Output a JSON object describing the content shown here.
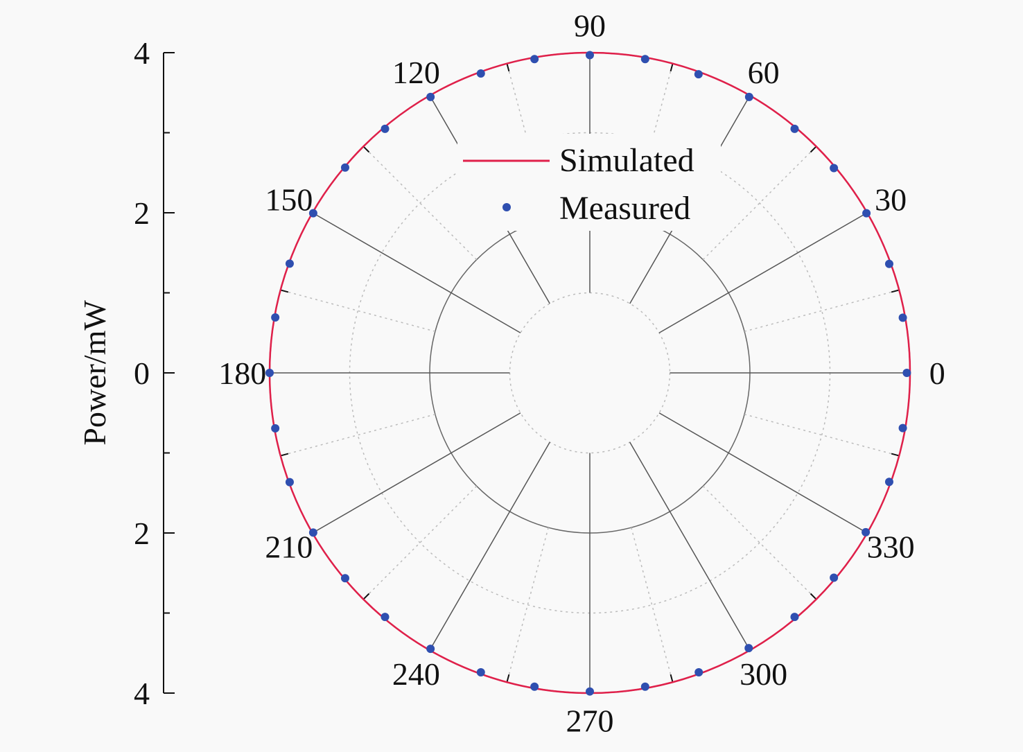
{
  "chart_data": {
    "type": "polar",
    "ylabel": "Power/mW",
    "radial_range": [
      0,
      4
    ],
    "radial_ticks": [
      "4",
      "2",
      "0",
      "2",
      "4"
    ],
    "angle_ticks": [
      0,
      30,
      60,
      90,
      120,
      150,
      180,
      210,
      240,
      270,
      300,
      330
    ],
    "angle_tick_labels": [
      "0",
      "30",
      "60",
      "90",
      "120",
      "150",
      "180",
      "210",
      "240",
      "270",
      "300",
      "330"
    ],
    "legend_position": "center-top",
    "grid": true,
    "series": [
      {
        "name": "Simulated",
        "style": "line",
        "color": "#e0204a",
        "angles": [
          0,
          360
        ],
        "values": [
          4,
          4
        ]
      },
      {
        "name": "Measured",
        "style": "scatter",
        "color": "#2f4fb0",
        "angles": [
          0,
          10,
          20,
          30,
          40,
          50,
          60,
          70,
          80,
          90,
          100,
          110,
          120,
          130,
          140,
          150,
          160,
          170,
          180,
          190,
          200,
          210,
          220,
          230,
          240,
          250,
          260,
          270,
          280,
          290,
          300,
          310,
          320,
          330,
          340,
          350
        ],
        "values": [
          3.96,
          3.97,
          3.98,
          3.99,
          3.98,
          3.98,
          3.98,
          3.97,
          3.98,
          3.97,
          3.98,
          3.98,
          3.98,
          3.98,
          3.99,
          3.99,
          3.99,
          3.99,
          4.0,
          3.99,
          3.99,
          3.99,
          3.99,
          3.98,
          3.98,
          3.98,
          3.98,
          3.98,
          3.98,
          3.98,
          3.97,
          3.98,
          3.98,
          3.98,
          3.98,
          3.97
        ]
      }
    ]
  }
}
